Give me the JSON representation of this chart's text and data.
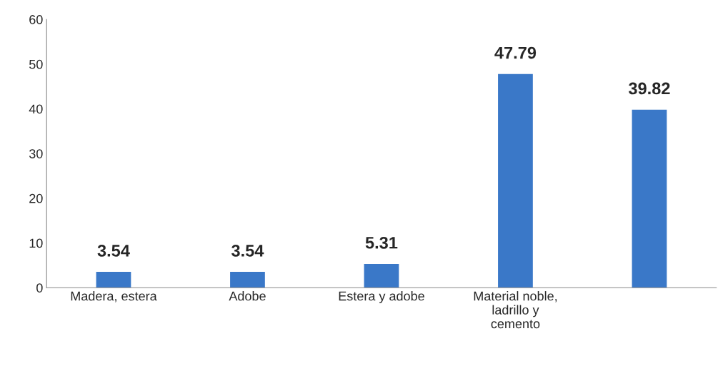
{
  "chart_data": {
    "type": "bar",
    "categories": [
      "Madera, estera",
      "Adobe",
      "Estera y adobe",
      "Material noble,\nladrillo y\ncemento",
      null
    ],
    "values": [
      3.54,
      3.54,
      5.31,
      47.79,
      39.82
    ],
    "color": "#3a78c8",
    "ylim": [
      0,
      60
    ],
    "yticks": [
      0,
      10,
      20,
      30,
      40,
      50,
      60
    ],
    "data_labels": true,
    "grid": false,
    "legend": false
  }
}
